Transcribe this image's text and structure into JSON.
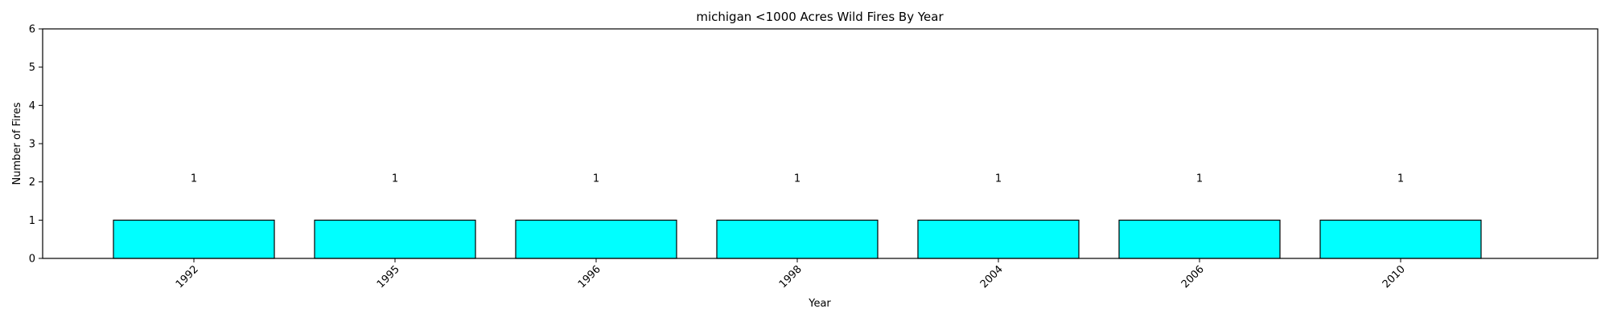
{
  "chart_data": {
    "type": "bar",
    "title": "michigan <1000 Acres Wild Fires By Year",
    "xlabel": "Year",
    "ylabel": "Number of Fires",
    "categories": [
      "1992",
      "1995",
      "1996",
      "1998",
      "2004",
      "2006",
      "2010"
    ],
    "values": [
      1,
      1,
      1,
      1,
      1,
      1,
      1
    ],
    "data_labels": [
      "1",
      "1",
      "1",
      "1",
      "1",
      "1",
      "1"
    ],
    "ylim": [
      0,
      6
    ],
    "yticks": [
      0,
      1,
      2,
      3,
      4,
      5,
      6
    ],
    "bar_color": "#00ffff",
    "edge_color": "#000000",
    "grid": false,
    "x_tick_rotation": 45
  }
}
